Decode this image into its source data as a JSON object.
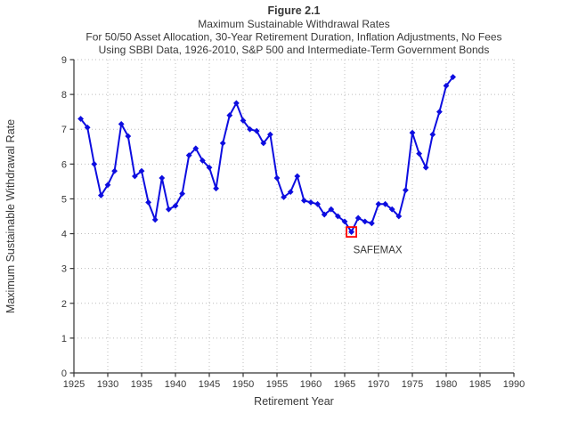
{
  "figure": {
    "title": "Figure 2.1",
    "subtitle1": "Maximum Sustainable Withdrawal Rates",
    "subtitle2": "For 50/50 Asset Allocation, 30-Year Retirement Duration, Inflation Adjustments, No Fees",
    "subtitle3": "Using SBBI Data, 1926-2010, S&P 500 and Intermediate-Term Government Bonds"
  },
  "chart_data": {
    "type": "line",
    "title": "Figure 2.1 — Maximum Sustainable Withdrawal Rates",
    "xlabel": "Retirement Year",
    "ylabel": "Maximum Sustainable Withdrawal Rate",
    "xlim": [
      1925,
      1990
    ],
    "ylim": [
      0,
      9
    ],
    "x_ticks": [
      1925,
      1930,
      1935,
      1940,
      1945,
      1950,
      1955,
      1960,
      1965,
      1970,
      1975,
      1980,
      1985,
      1990
    ],
    "y_ticks": [
      0,
      1,
      2,
      3,
      4,
      5,
      6,
      7,
      8,
      9
    ],
    "grid": true,
    "legend": "none",
    "marker": "diamond",
    "line_color": "#0d0de0",
    "grid_color": "#bcbcbc",
    "axis_color": "#333333",
    "x": [
      1926,
      1927,
      1928,
      1929,
      1930,
      1931,
      1932,
      1933,
      1934,
      1935,
      1936,
      1937,
      1938,
      1939,
      1940,
      1941,
      1942,
      1943,
      1944,
      1945,
      1946,
      1947,
      1948,
      1949,
      1950,
      1951,
      1952,
      1953,
      1954,
      1955,
      1956,
      1957,
      1958,
      1959,
      1960,
      1961,
      1962,
      1963,
      1964,
      1965,
      1966,
      1967,
      1968,
      1969,
      1970,
      1971,
      1972,
      1973,
      1974,
      1975,
      1976,
      1977,
      1978,
      1979,
      1980,
      1981
    ],
    "series": [
      {
        "name": "Maximum Sustainable Withdrawal Rate (%)",
        "values": [
          7.3,
          7.05,
          6.0,
          5.1,
          5.4,
          5.8,
          7.15,
          6.8,
          5.65,
          5.8,
          4.9,
          4.4,
          5.6,
          4.7,
          4.8,
          5.15,
          6.25,
          6.45,
          6.1,
          5.9,
          5.3,
          6.6,
          7.4,
          7.75,
          7.25,
          7.0,
          6.95,
          6.6,
          6.85,
          5.6,
          5.05,
          5.2,
          5.65,
          4.95,
          4.9,
          4.85,
          4.55,
          4.7,
          4.5,
          4.35,
          4.05,
          4.45,
          4.35,
          4.3,
          4.85,
          4.85,
          4.7,
          4.5,
          5.25,
          6.9,
          6.3,
          5.9,
          6.85,
          7.5,
          8.25,
          8.5
        ]
      }
    ],
    "annotation": {
      "label": "SAFEMAX",
      "year": 1966,
      "value": 4.05,
      "box_color": "#ff0000"
    }
  }
}
